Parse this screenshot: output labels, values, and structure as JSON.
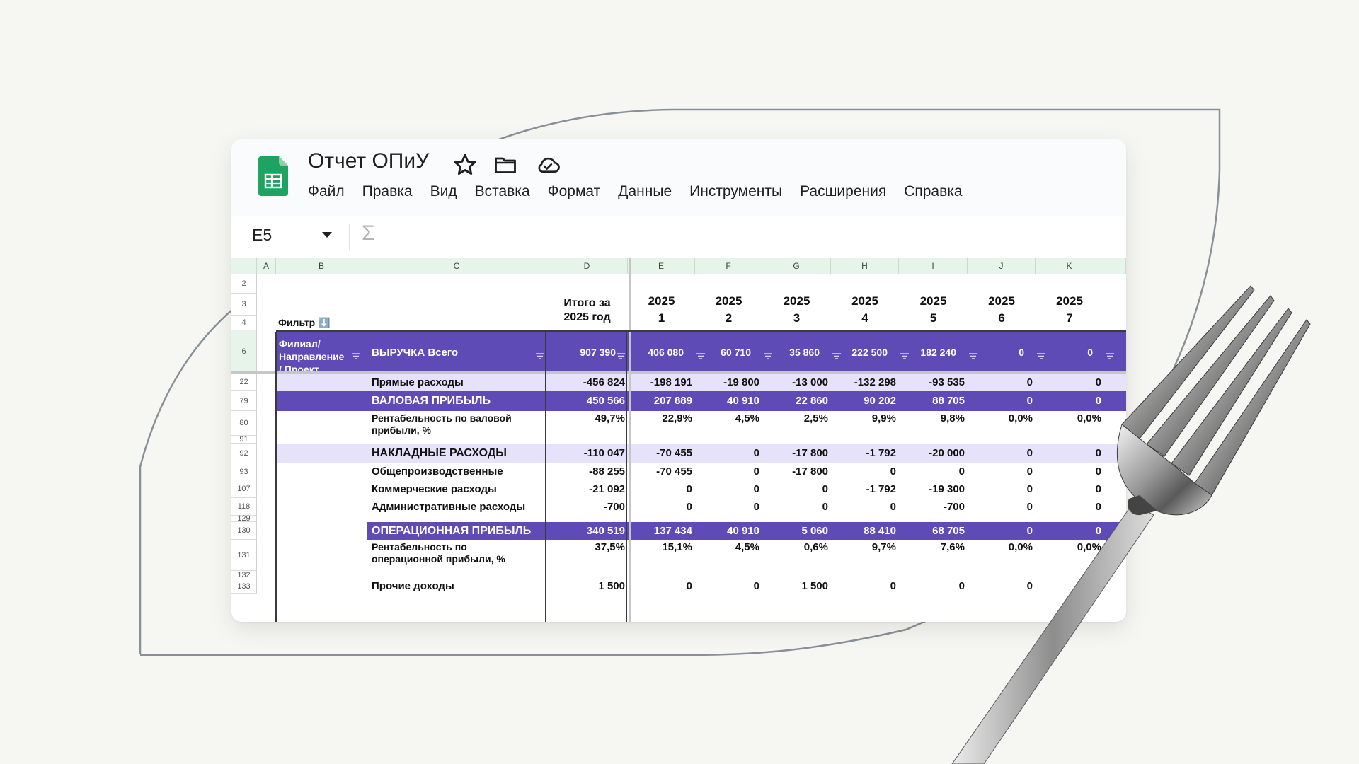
{
  "document": {
    "title": "Отчет ОПиУ",
    "menu": [
      "Файл",
      "Правка",
      "Вид",
      "Вставка",
      "Формат",
      "Данные",
      "Инструменты",
      "Расширения",
      "Справка"
    ],
    "icons": [
      "sheets-logo-icon",
      "star-icon",
      "folder-icon",
      "cloud-saved-icon",
      "dropdown-caret-icon",
      "sigma-icon",
      "filter-icon"
    ]
  },
  "formula_bar": {
    "cell_ref": "E5",
    "function_symbol": "Σ"
  },
  "sheet": {
    "columns": [
      "A",
      "B",
      "C",
      "D",
      "E",
      "F",
      "G",
      "H",
      "I",
      "J",
      "K"
    ],
    "row_numbers": [
      "2",
      "3",
      "4",
      "6",
      "22",
      "79",
      "80",
      "91",
      "92",
      "93",
      "107",
      "118",
      "129",
      "130",
      "131",
      "132",
      "133"
    ],
    "filter_label": "Фильтр ⬇️",
    "total_header": "Итого за 2025 год",
    "period_headers": [
      {
        "year": "2025",
        "month": "1"
      },
      {
        "year": "2025",
        "month": "2"
      },
      {
        "year": "2025",
        "month": "3"
      },
      {
        "year": "2025",
        "month": "4"
      },
      {
        "year": "2025",
        "month": "5"
      },
      {
        "year": "2025",
        "month": "6"
      },
      {
        "year": "2025",
        "month": "7"
      }
    ],
    "header_row": {
      "dimension_label": "Филиал/ Направление / Проект",
      "label": "ВЫРУЧКА Всего",
      "total": "907 390",
      "values": [
        "406 080",
        "60 710",
        "35 860",
        "222 500",
        "182 240",
        "0",
        "0"
      ]
    },
    "rows": [
      {
        "label": "Прямые расходы",
        "total": "-456 824",
        "values": [
          "-198 191",
          "-19 800",
          "-13 000",
          "-132 298",
          "-93 535",
          "0",
          "0"
        ]
      },
      {
        "label": "ВАЛОВАЯ ПРИБЫЛЬ",
        "total": "450 566",
        "values": [
          "207 889",
          "40 910",
          "22 860",
          "90 202",
          "88 705",
          "0",
          "0"
        ]
      },
      {
        "label": "Рентабельность по валовой прибыли, %",
        "total": "49,7%",
        "values": [
          "22,9%",
          "4,5%",
          "2,5%",
          "9,9%",
          "9,8%",
          "0,0%",
          "0,0%"
        ]
      },
      {
        "label": "НАКЛАДНЫЕ РАСХОДЫ",
        "total": "-110 047",
        "values": [
          "-70 455",
          "0",
          "-17 800",
          "-1 792",
          "-20 000",
          "0",
          "0"
        ]
      },
      {
        "label": "Общепроизводственные",
        "total": "-88 255",
        "values": [
          "-70 455",
          "0",
          "-17 800",
          "0",
          "0",
          "0",
          "0"
        ]
      },
      {
        "label": "Коммерческие расходы",
        "total": "-21 092",
        "values": [
          "0",
          "0",
          "0",
          "-1 792",
          "-19 300",
          "0",
          "0"
        ]
      },
      {
        "label": "Административные расходы",
        "total": "-700",
        "values": [
          "0",
          "0",
          "0",
          "0",
          "-700",
          "0",
          "0"
        ]
      },
      {
        "label": "ОПЕРАЦИОННАЯ ПРИБЫЛЬ",
        "total": "340 519",
        "values": [
          "137 434",
          "40 910",
          "5 060",
          "88 410",
          "68 705",
          "0",
          "0"
        ]
      },
      {
        "label": "Рентабельность по операционной прибыли, %",
        "total": "37,5%",
        "values": [
          "15,1%",
          "4,5%",
          "0,6%",
          "9,7%",
          "7,6%",
          "0,0%",
          "0,0%"
        ]
      },
      {
        "label": "Прочие доходы",
        "total": "1 500",
        "values": [
          "0",
          "0",
          "1 500",
          "0",
          "0",
          "0",
          "0"
        ]
      }
    ]
  },
  "colors": {
    "accent_purple": "#5f4bb6",
    "lavender_row": "#e6e2fa",
    "header_green": "#e6f4ea",
    "sheets_green": "#1ea362",
    "background": "#f6f7f2"
  }
}
